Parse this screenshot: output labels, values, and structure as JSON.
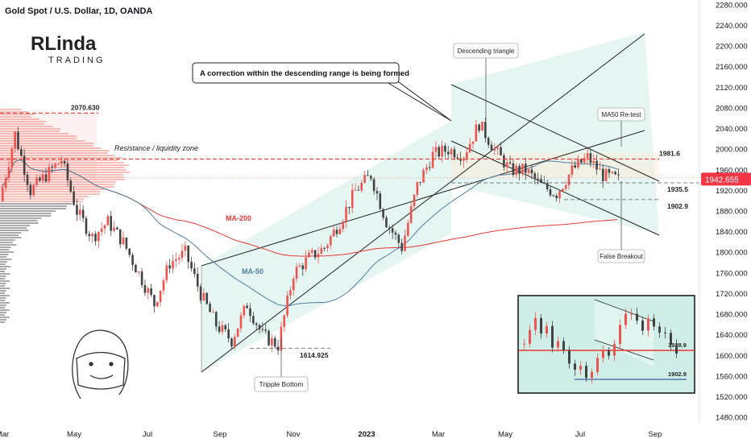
{
  "header": {
    "title": "Gold Spot / U.S. Dollar, 1D, OANDA"
  },
  "logo": {
    "line1": "RLinda",
    "line2": "TRADING"
  },
  "colors": {
    "bg": "#cfeee8",
    "up": "#ef5350",
    "down": "#424242",
    "ma200": "#e53935",
    "ma50": "#4f7fa0",
    "price_badge": "#f23645",
    "channel": "#222222",
    "dashed_red": "#e53935"
  },
  "chart_data": {
    "type": "candlestick",
    "instrument": "Gold Spot / U.S. Dollar",
    "timeframe": "1D",
    "source": "OANDA",
    "y_axis": {
      "min": 1470,
      "max": 2290,
      "ticks": [
        2280,
        2240,
        2200,
        2160,
        2120,
        2080,
        2040,
        2000,
        1960,
        1920,
        1880,
        1840,
        1800,
        1760,
        1720,
        1680,
        1640,
        1600,
        1560,
        1520,
        1480
      ]
    },
    "x_axis": {
      "labels": [
        "Mar",
        "May",
        "Jul",
        "Sep",
        "Nov",
        "2023",
        "Mar",
        "May",
        "Jul",
        "Sep"
      ]
    },
    "last_price": 1942.655,
    "levels": [
      {
        "label": "2070.630",
        "value": 2070.63
      },
      {
        "label": "1981.6",
        "value": 1981.6
      },
      {
        "label": "1935.5",
        "value": 1935.5
      },
      {
        "label": "1902.9",
        "value": 1902.9
      },
      {
        "label": "1614.925",
        "value": 1614.925
      }
    ],
    "moving_averages": [
      {
        "name": "MA-200"
      },
      {
        "name": "MA-50"
      }
    ],
    "price_path": [
      [
        "Feb 2022",
        1900
      ],
      [
        "Mar 2022",
        2030
      ],
      [
        "Mar 2022",
        1920
      ],
      [
        "Apr 2022",
        1950
      ],
      [
        "Apr 2022",
        1980
      ],
      [
        "May 2022",
        1880
      ],
      [
        "May 2022",
        1830
      ],
      [
        "Jun 2022",
        1860
      ],
      [
        "Jun 2022",
        1820
      ],
      [
        "Jul 2022",
        1760
      ],
      [
        "Jul 2022",
        1700
      ],
      [
        "Aug 2022",
        1780
      ],
      [
        "Aug 2022",
        1800
      ],
      [
        "Sep 2022",
        1720
      ],
      [
        "Sep 2022",
        1660
      ],
      [
        "Oct 2022",
        1630
      ],
      [
        "Oct 2022",
        1700
      ],
      [
        "Nov 2022",
        1640
      ],
      [
        "Nov 2022",
        1620
      ],
      [
        "Nov 2022",
        1760
      ],
      [
        "Dec 2022",
        1790
      ],
      [
        "Dec 2022",
        1810
      ],
      [
        "Jan 2023",
        1860
      ],
      [
        "Jan 2023",
        1920
      ],
      [
        "Feb 2023",
        1950
      ],
      [
        "Feb 2023",
        1860
      ],
      [
        "Mar 2023",
        1810
      ],
      [
        "Mar 2023",
        1930
      ],
      [
        "Mar 2023",
        1990
      ],
      [
        "Apr 2023",
        2000
      ],
      [
        "Apr 2023",
        1990
      ],
      [
        "May 2023",
        2050
      ],
      [
        "May 2023",
        2000
      ],
      [
        "May 2023",
        1960
      ],
      [
        "Jun 2023",
        1960
      ],
      [
        "Jun 2023",
        1930
      ],
      [
        "Jul 2023",
        1915
      ],
      [
        "Jul 2023",
        1960
      ],
      [
        "Jul 2023",
        1985
      ],
      [
        "Aug 2023",
        1950
      ],
      [
        "Aug 2023",
        1942
      ]
    ],
    "annotations": {
      "callout": "A correction within the descending range is being formed",
      "descending_triangle": "Descending triangle",
      "ma50_retest": "MA50 Re-test",
      "false_breakout": "False Breakout",
      "triple_bottom": "Tripple Bottom",
      "resistance": "Resistance / liquidity zone",
      "ma200_label": "MA-200",
      "ma50_label": "MA-50"
    },
    "inset": {
      "levels": [
        {
          "label": "1938.9",
          "value": 1938.9
        },
        {
          "label": "1902.9",
          "value": 1902.9
        }
      ]
    }
  }
}
